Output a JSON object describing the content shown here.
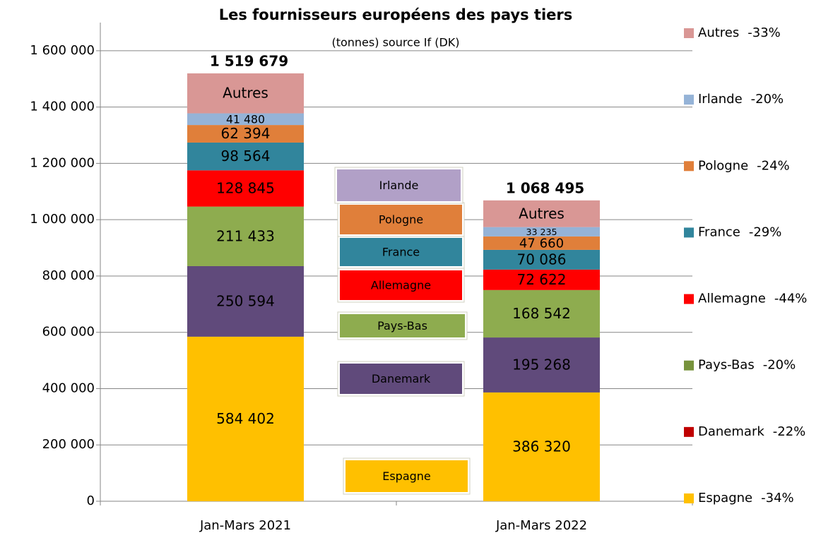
{
  "chart_data": {
    "type": "stacked_bar",
    "title": "Les fournisseurs européens des pays tiers",
    "subtitle": "(tonnes) source If (DK)",
    "categories": [
      "Jan-Mars 2021",
      "Jan-Mars 2022"
    ],
    "series": [
      {
        "name": "Espagne",
        "color": "#ffc000",
        "legend_color": "#ffc000",
        "label_color": "#000000",
        "change_label": "-34%",
        "values": [
          584402,
          386320
        ],
        "value_labels": [
          "584 402",
          "386 320"
        ]
      },
      {
        "name": "Danemark",
        "color": "#604a7b",
        "legend_color": "#c00000",
        "label_color": "#ffffff",
        "change_label": "-22%",
        "values": [
          250594,
          195268
        ],
        "value_labels": [
          "250 594",
          "195 268"
        ]
      },
      {
        "name": "Pays-Bas",
        "color": "#8eac4f",
        "legend_color": "#77933c",
        "label_color": "#000000",
        "change_label": "-20%",
        "values": [
          211433,
          168542
        ],
        "value_labels": [
          "211 433",
          "168 542"
        ]
      },
      {
        "name": "Allemagne",
        "color": "#ff0000",
        "legend_color": "#ff0000",
        "label_color": "#ffffff",
        "change_label": "-44%",
        "values": [
          128845,
          72622
        ],
        "value_labels": [
          "128 845",
          "72 622"
        ]
      },
      {
        "name": "France",
        "color": "#31859c",
        "legend_color": "#31859c",
        "label_color": "#000000",
        "change_label": "-29%",
        "values": [
          98564,
          70086
        ],
        "value_labels": [
          "98 564",
          "70 086"
        ]
      },
      {
        "name": "Pologne",
        "color": "#e07f3a",
        "legend_color": "#e07f3a",
        "label_color": "#000000",
        "change_label": "-24%",
        "values": [
          62394,
          47660
        ],
        "value_labels": [
          "62 394",
          "47 660"
        ]
      },
      {
        "name": "Irlande",
        "color": "#95b3d7",
        "legend_color": "#95b3d7",
        "box_color": "#b1a0c7",
        "label_color": "#000000",
        "change_label": "-20%",
        "values": [
          41480,
          33235
        ],
        "value_labels": [
          "41 480",
          "33 235"
        ]
      },
      {
        "name": "Autres",
        "color": "#d99795",
        "legend_color": "#d99795",
        "label_color": "#000000",
        "change_label": "-33%",
        "values": [
          141967,
          94762
        ]
      }
    ],
    "totals": [
      1519679,
      1068495
    ],
    "total_labels": [
      "1 519 679",
      "1 068 495"
    ],
    "ylim": [
      0,
      1700000
    ],
    "yticks": [
      0,
      {
        "value": 200000,
        "label": "200 000"
      },
      {
        "value": 400000,
        "label": "400 000"
      },
      {
        "value": 600000,
        "label": "600 000"
      },
      {
        "value": 800000,
        "label": "800 000"
      },
      {
        "value": 1000000,
        "label": "1 000 000"
      },
      {
        "value": 1200000,
        "label": "1 200 000"
      },
      {
        "value": 1400000,
        "label": "1 400 000"
      },
      {
        "value": 1600000,
        "label": "1 600 000"
      }
    ],
    "grid": true
  }
}
